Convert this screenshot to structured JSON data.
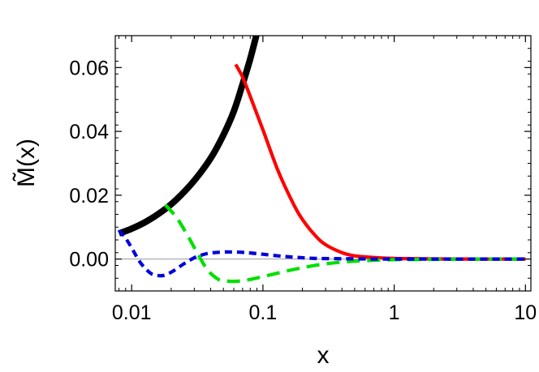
{
  "chart_data": {
    "type": "line",
    "title": "",
    "xlabel": "x",
    "ylabel": "M̃(x)",
    "x_scale": "log",
    "xlim": [
      0.0075,
      11
    ],
    "ylim": [
      -0.01,
      0.07
    ],
    "x_ticks": [
      {
        "value": 0.01,
        "label": "0.01"
      },
      {
        "value": 0.1,
        "label": "0.1"
      },
      {
        "value": 1,
        "label": "1"
      },
      {
        "value": 10,
        "label": "10"
      }
    ],
    "y_ticks": [
      {
        "value": 0.0,
        "label": "0.00"
      },
      {
        "value": 0.02,
        "label": "0.02"
      },
      {
        "value": 0.04,
        "label": "0.04"
      },
      {
        "value": 0.06,
        "label": "0.06"
      }
    ],
    "zero_line": true,
    "grid": false,
    "legend": "none",
    "series": [
      {
        "color": "#000000",
        "style": "solid",
        "width": "thick",
        "x": [
          0.008,
          0.01,
          0.013,
          0.017,
          0.022,
          0.03,
          0.04,
          0.05,
          0.06,
          0.07,
          0.08,
          0.09
        ],
        "y": [
          0.008,
          0.0095,
          0.0118,
          0.0149,
          0.0187,
          0.0246,
          0.0316,
          0.0389,
          0.0463,
          0.0548,
          0.0627,
          0.0708
        ]
      },
      {
        "color": "#ff0000",
        "style": "solid",
        "width": "medium",
        "x": [
          0.062,
          0.07,
          0.08,
          0.1,
          0.13,
          0.17,
          0.2,
          0.25,
          0.3,
          0.4,
          0.5,
          0.7,
          1,
          1.5,
          2,
          3,
          5,
          10
        ],
        "y": [
          0.061,
          0.057,
          0.051,
          0.0405,
          0.0278,
          0.0174,
          0.0124,
          0.0074,
          0.0045,
          0.002,
          0.001,
          0.0005,
          0.0002,
          0.0001,
          5e-05,
          0.0,
          0.0,
          0.0
        ]
      },
      {
        "color": "#00e000",
        "style": "dashed",
        "width": "medium",
        "x": [
          0.018,
          0.022,
          0.027,
          0.032,
          0.038,
          0.045,
          0.05,
          0.06,
          0.07,
          0.08,
          0.1,
          0.13,
          0.17,
          0.22,
          0.3,
          0.45,
          0.7,
          1,
          2,
          5,
          10
        ],
        "y": [
          0.017,
          0.013,
          0.007,
          0.0015,
          -0.0035,
          -0.0062,
          -0.0068,
          -0.007,
          -0.0068,
          -0.0064,
          -0.0055,
          -0.0044,
          -0.0033,
          -0.0024,
          -0.0015,
          -0.0008,
          -0.0004,
          -0.0002,
          -0.0001,
          0.0,
          0.0
        ]
      },
      {
        "color": "#0000dd",
        "style": "dashed",
        "width": "medium",
        "x": [
          0.008,
          0.009,
          0.01,
          0.011,
          0.012,
          0.014,
          0.016,
          0.018,
          0.021,
          0.025,
          0.03,
          0.035,
          0.04,
          0.05,
          0.06,
          0.07,
          0.08,
          0.1,
          0.13,
          0.17,
          0.25,
          0.4,
          0.7,
          1,
          2,
          5,
          10
        ],
        "y": [
          0.009,
          0.0065,
          0.0035,
          0.0005,
          -0.0018,
          -0.0045,
          -0.0052,
          -0.005,
          -0.0036,
          -0.0015,
          0.0004,
          0.0014,
          0.0019,
          0.0022,
          0.0022,
          0.0021,
          0.0019,
          0.0015,
          0.001,
          0.0006,
          0.0002,
          0.0001,
          0.0,
          0.0,
          0.0,
          0.0,
          0.0
        ]
      }
    ]
  }
}
